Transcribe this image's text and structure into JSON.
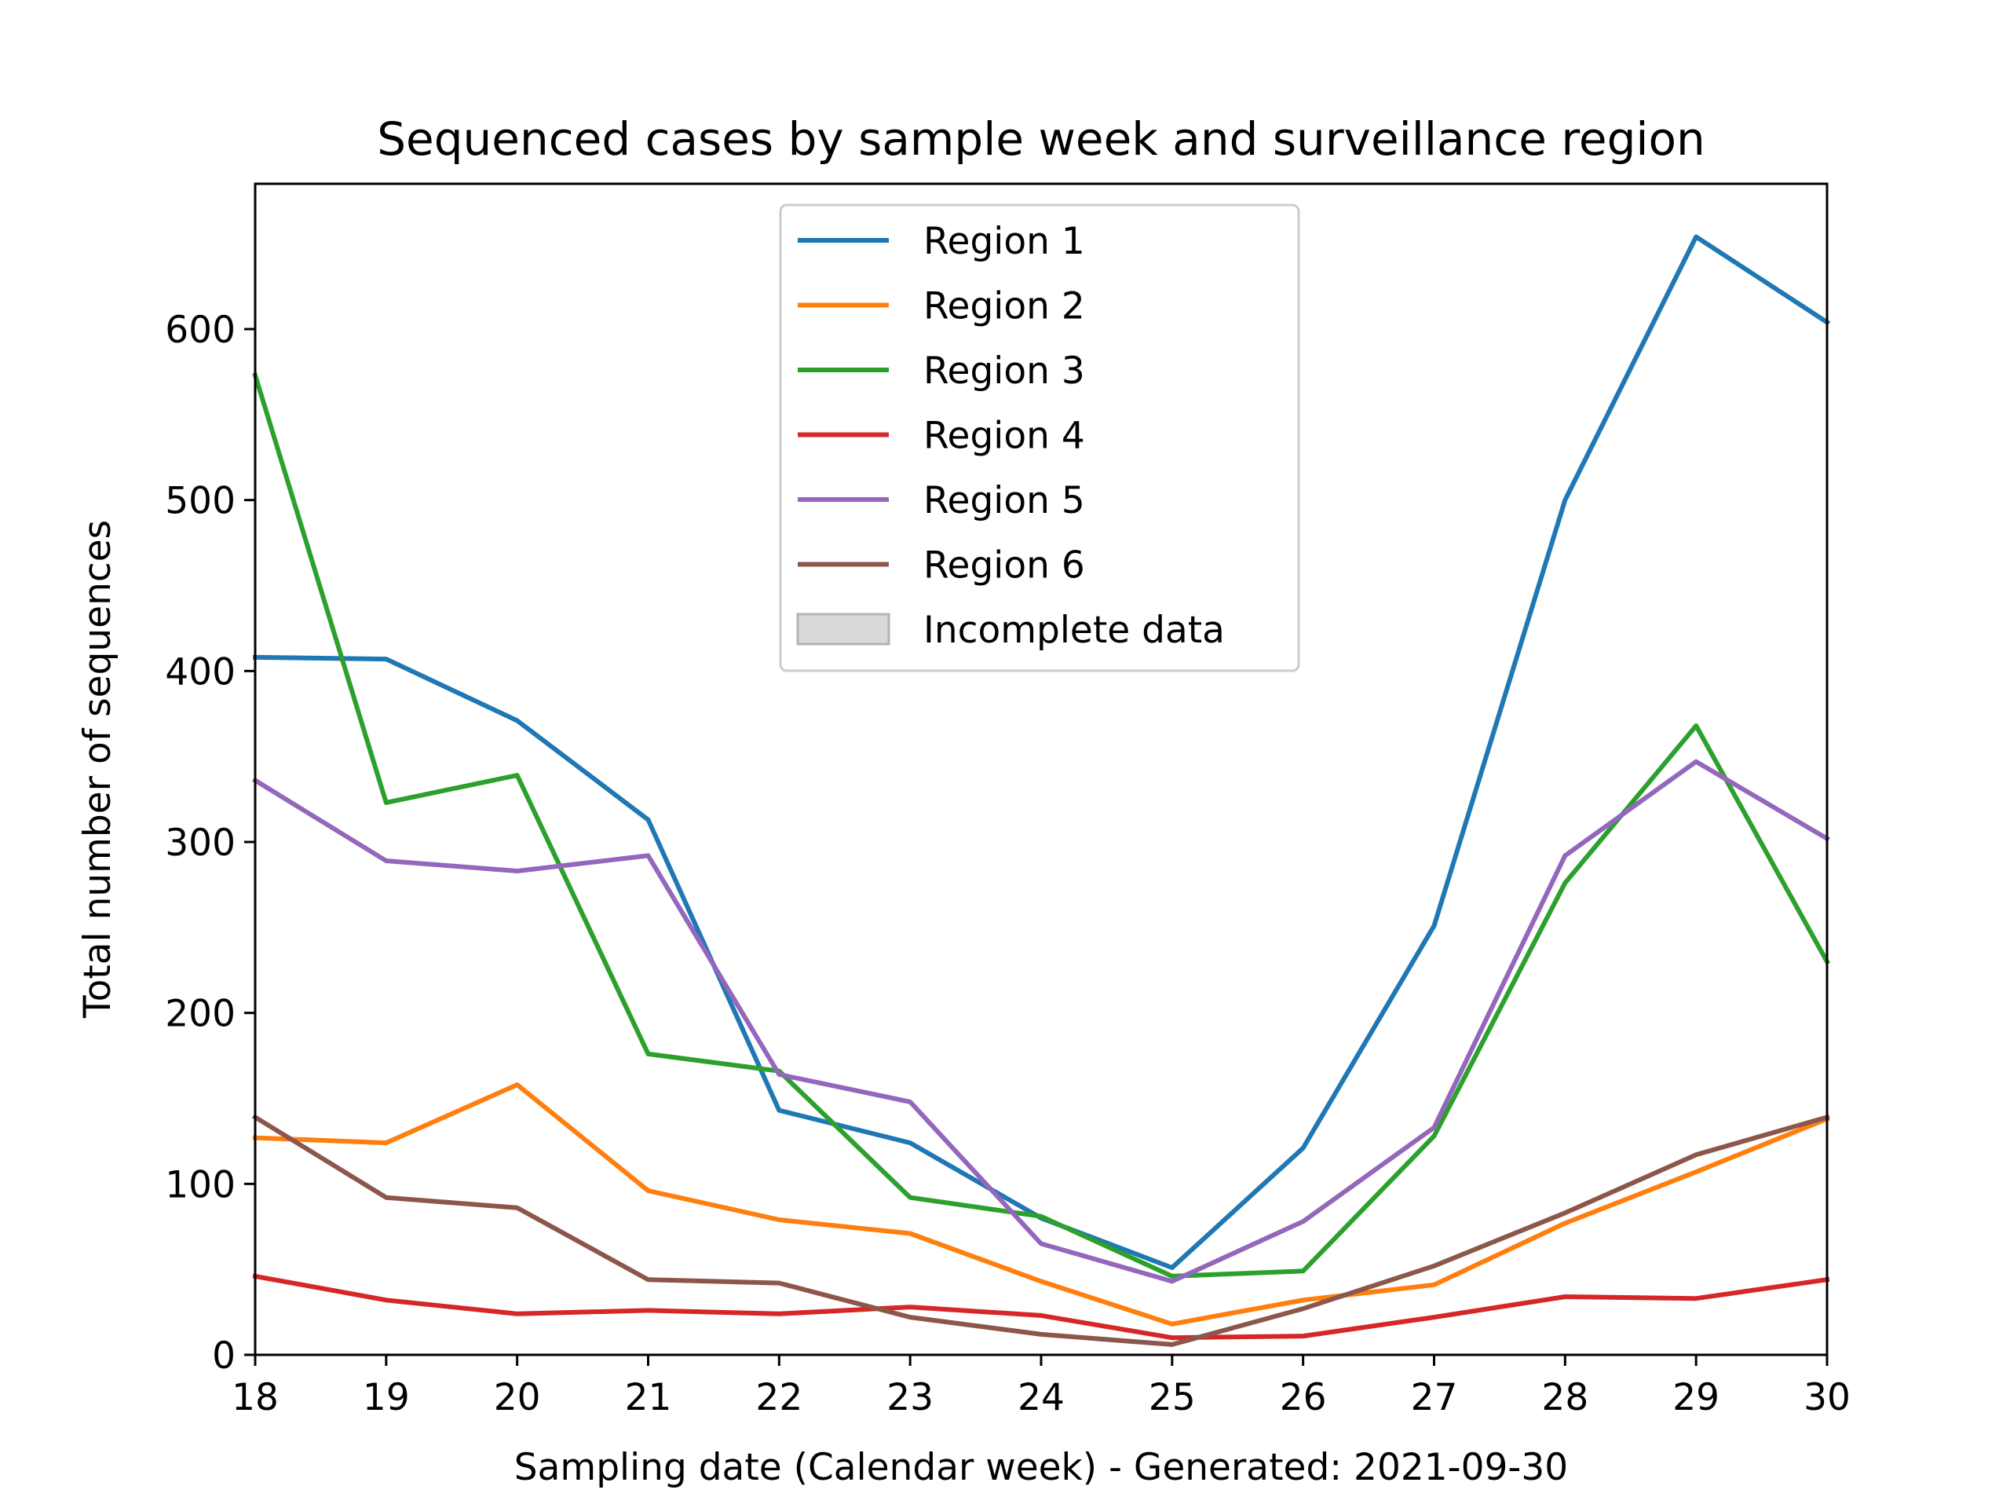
{
  "chart_data": {
    "type": "line",
    "title": "Sequenced cases by sample week and surveillance region",
    "xlabel": "Sampling date (Calendar week) - Generated: 2021-09-30",
    "ylabel": "Total number of sequences",
    "x": [
      18,
      19,
      20,
      21,
      22,
      23,
      24,
      25,
      26,
      27,
      28,
      29,
      30
    ],
    "xlim": [
      18,
      30
    ],
    "ylim": [
      0,
      685
    ],
    "yticks": [
      0,
      100,
      200,
      300,
      400,
      500,
      600
    ],
    "grid": false,
    "legend_position": "top-center",
    "series": [
      {
        "name": "Region 1",
        "color": "#1f77b4",
        "values": [
          408,
          407,
          371,
          313,
          143,
          124,
          80,
          51,
          121,
          251,
          500,
          654,
          604
        ]
      },
      {
        "name": "Region 2",
        "color": "#ff7f0e",
        "values": [
          127,
          124,
          158,
          96,
          79,
          71,
          43,
          18,
          32,
          41,
          77,
          107,
          138
        ]
      },
      {
        "name": "Region 3",
        "color": "#2ca02c",
        "values": [
          573,
          323,
          339,
          176,
          166,
          92,
          81,
          46,
          49,
          128,
          276,
          368,
          230
        ]
      },
      {
        "name": "Region 4",
        "color": "#d62728",
        "values": [
          46,
          32,
          24,
          26,
          24,
          28,
          23,
          10,
          11,
          22,
          34,
          33,
          44
        ]
      },
      {
        "name": "Region 5",
        "color": "#9467bd",
        "values": [
          336,
          289,
          283,
          292,
          164,
          148,
          65,
          43,
          78,
          133,
          292,
          347,
          302
        ]
      },
      {
        "name": "Region 6",
        "color": "#8c564b",
        "values": [
          139,
          92,
          86,
          44,
          42,
          22,
          12,
          6,
          27,
          52,
          83,
          117,
          139
        ]
      }
    ],
    "legend_extra": {
      "name": "Incomplete data",
      "color": "#d9d9d9",
      "edge": "#b3b3b3"
    }
  }
}
